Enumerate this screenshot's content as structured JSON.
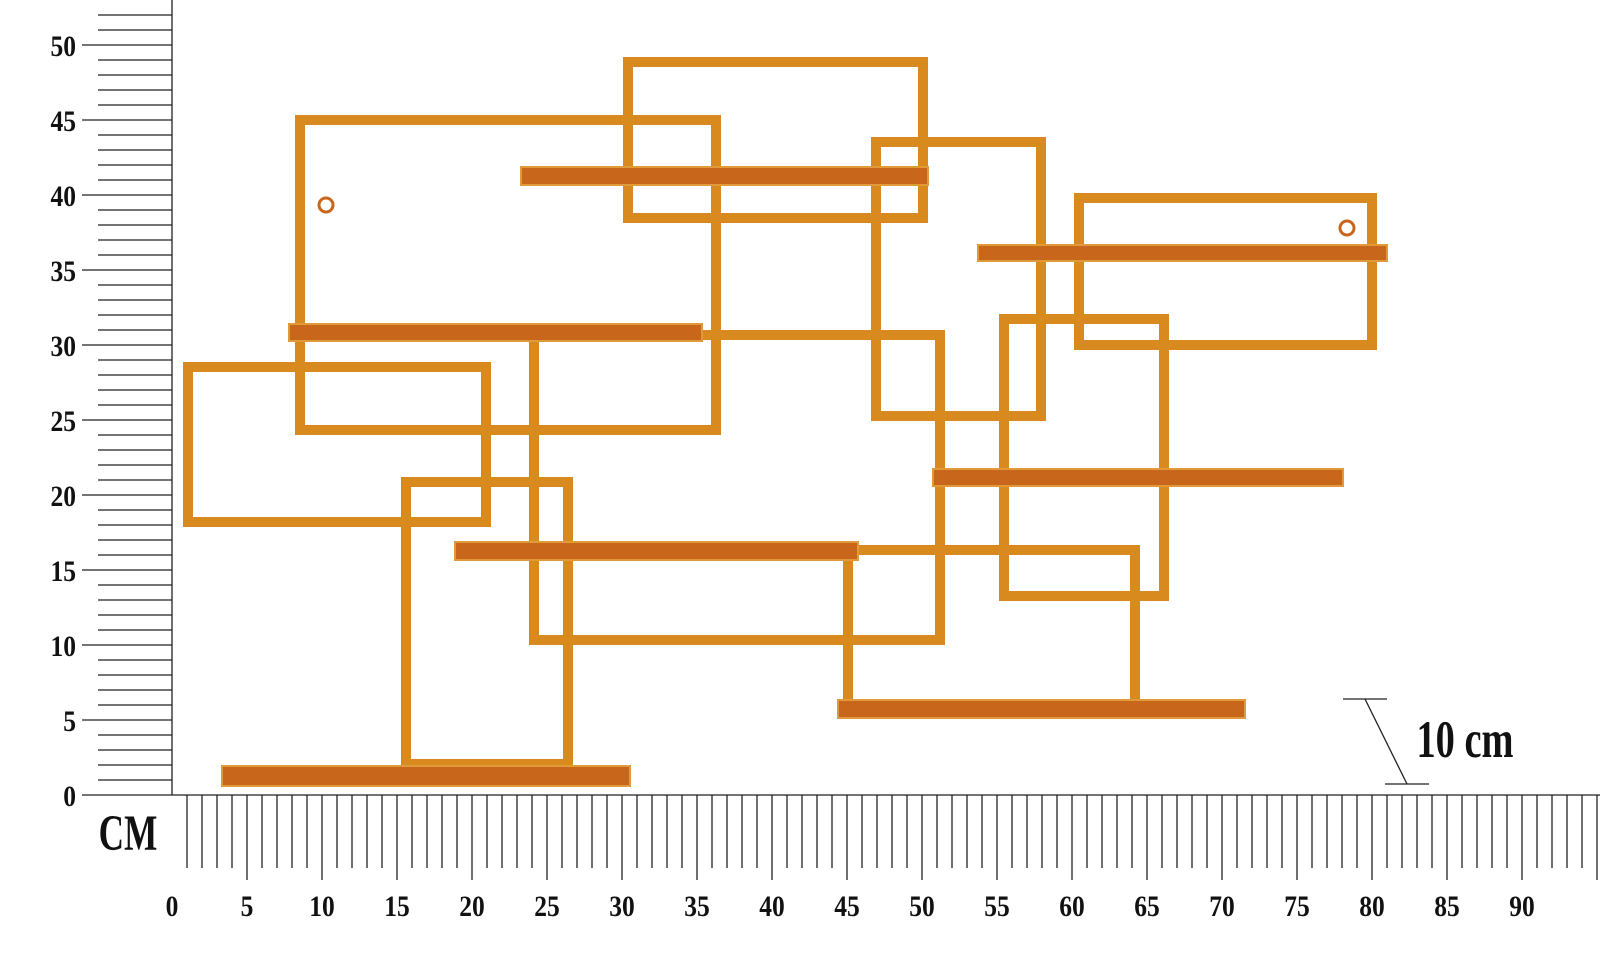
{
  "y_ruler": {
    "labels": [
      0,
      5,
      10,
      15,
      20,
      25,
      30,
      35,
      40,
      45,
      50
    ]
  },
  "x_ruler": {
    "labels": [
      0,
      5,
      10,
      15,
      20,
      25,
      30,
      35,
      40,
      45,
      50,
      55,
      60,
      65,
      70,
      75,
      80,
      85,
      90
    ]
  },
  "unit": "CM",
  "scale_note": "10 cm"
}
